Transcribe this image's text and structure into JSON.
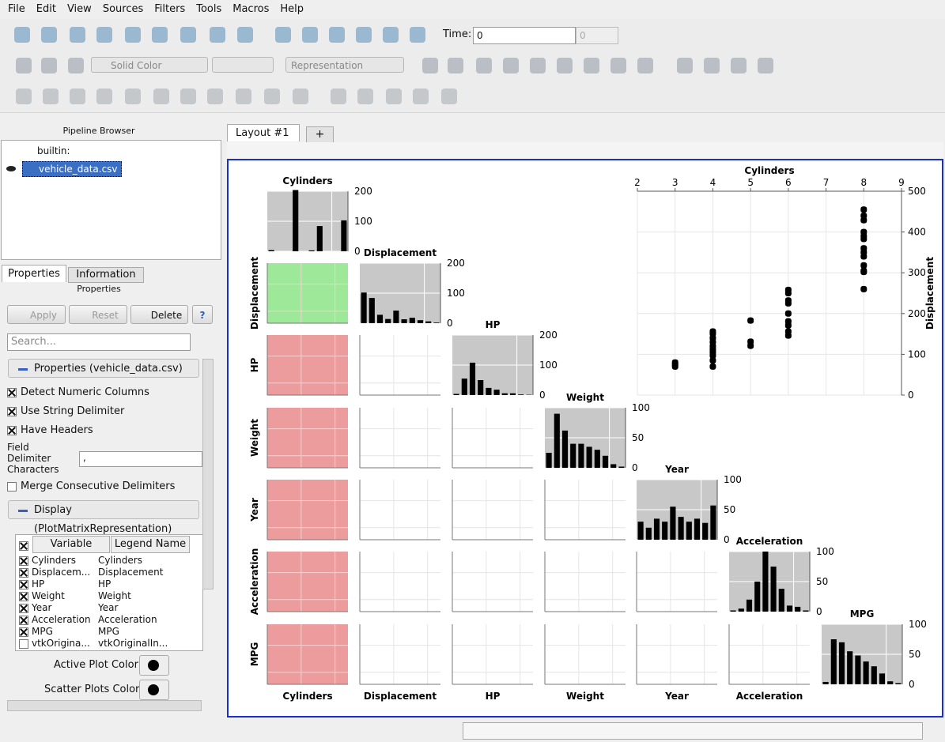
{
  "menu": [
    "File",
    "Edit",
    "View",
    "Sources",
    "Filters",
    "Tools",
    "Macros",
    "Help"
  ],
  "toolbar": {
    "time_label": "Time:",
    "time_value": "0",
    "time_index": "0",
    "color_by": "Solid Color",
    "representation": "Representation"
  },
  "pipeline_browser": {
    "title": "Pipeline Browser",
    "items": [
      "builtin:",
      "vehicle_data.csv"
    ]
  },
  "tabs": [
    "Properties",
    "Information"
  ],
  "properties": {
    "title": "Properties",
    "buttons": [
      "Apply",
      "Reset",
      "Delete",
      "?"
    ],
    "search_placeholder": "Search...",
    "section1": "Properties (vehicle_data.csv)",
    "checks": [
      {
        "label": "Detect Numeric Columns",
        "checked": true
      },
      {
        "label": "Use String Delimiter",
        "checked": true
      },
      {
        "label": "Have Headers",
        "checked": true
      }
    ],
    "field_delimiter_label": "Field Delimiter Characters",
    "field_delimiter_value": ",",
    "merge": {
      "label": "Merge Consecutive Delimiters",
      "checked": false
    },
    "section2": "Display (PlotMatrixRepresentation)",
    "table_headers": [
      "Variable",
      "Legend Name"
    ],
    "table_rows": [
      {
        "checked": true,
        "variable": "Cylinders",
        "legend": "Cylinders"
      },
      {
        "checked": true,
        "variable": "Displacem...",
        "legend": "Displacement"
      },
      {
        "checked": true,
        "variable": "HP",
        "legend": "HP"
      },
      {
        "checked": true,
        "variable": "Weight",
        "legend": "Weight"
      },
      {
        "checked": true,
        "variable": "Year",
        "legend": "Year"
      },
      {
        "checked": true,
        "variable": "Acceleration",
        "legend": "Acceleration"
      },
      {
        "checked": true,
        "variable": "MPG",
        "legend": "MPG"
      },
      {
        "checked": false,
        "variable": "vtkOrigina...",
        "legend": "vtkOriginalIn..."
      }
    ],
    "active_plot_color": "Active Plot Color:",
    "scatter_plots_color": "Scatter Plots Color:"
  },
  "layout_tab": "Layout #1",
  "new_tab": "+",
  "plot_matrix": {
    "variables": [
      "Cylinders",
      "Displacement",
      "HP",
      "Weight",
      "Year",
      "Acceleration",
      "MPG"
    ],
    "histograms": [
      {
        "values": [
          4,
          0,
          0,
          204,
          0,
          3,
          84,
          0,
          0,
          103
        ],
        "ylim": [
          0,
          200
        ],
        "yticks": [
          0,
          100,
          200
        ]
      },
      {
        "values": [
          102,
          84,
          28,
          14,
          42,
          13,
          18,
          10,
          6,
          2
        ],
        "ylim": [
          0,
          200
        ],
        "yticks": [
          0,
          100,
          200
        ]
      },
      {
        "values": [
          4,
          55,
          108,
          50,
          24,
          18,
          6,
          6,
          2,
          1
        ],
        "ylim": [
          0,
          200
        ],
        "yticks": [
          0,
          100,
          200
        ]
      },
      {
        "values": [
          25,
          90,
          62,
          40,
          40,
          35,
          30,
          20,
          6,
          2
        ],
        "ylim": [
          0,
          100
        ],
        "yticks": [
          0,
          50,
          100
        ]
      },
      {
        "values": [
          30,
          20,
          35,
          30,
          55,
          38,
          30,
          35,
          28,
          57
        ],
        "ylim": [
          0,
          100
        ],
        "yticks": [
          0,
          50,
          100
        ]
      },
      {
        "values": [
          2,
          5,
          20,
          50,
          100,
          75,
          38,
          10,
          8,
          2
        ],
        "ylim": [
          0,
          100
        ],
        "yticks": [
          0,
          50,
          100
        ]
      },
      {
        "values": [
          4,
          75,
          70,
          55,
          48,
          38,
          30,
          18,
          5,
          2
        ],
        "ylim": [
          0,
          100
        ],
        "yticks": [
          0,
          50,
          100
        ]
      }
    ],
    "active_plot": {
      "type": "scatter",
      "x": [
        3,
        3,
        3,
        4,
        4,
        4,
        4,
        4,
        4,
        4,
        4,
        4,
        4,
        5,
        5,
        5,
        6,
        6,
        6,
        6,
        6,
        6,
        6,
        6,
        6,
        8,
        8,
        8,
        8,
        8,
        8,
        8,
        8,
        8,
        8,
        8,
        8,
        8
      ],
      "y": [
        70,
        75,
        80,
        70,
        85,
        97,
        105,
        112,
        120,
        130,
        140,
        151,
        156,
        121,
        131,
        183,
        146,
        156,
        171,
        181,
        200,
        225,
        232,
        250,
        258,
        260,
        302,
        305,
        318,
        340,
        350,
        360,
        383,
        390,
        400,
        429,
        440,
        455
      ],
      "xlim": [
        2,
        9
      ],
      "xticks": [
        2,
        3,
        4,
        5,
        6,
        7,
        8,
        9
      ],
      "ylim": [
        0,
        500
      ],
      "yticks": [
        0,
        100,
        200,
        300,
        400,
        500
      ],
      "color": "#000000",
      "grid": true
    }
  }
}
